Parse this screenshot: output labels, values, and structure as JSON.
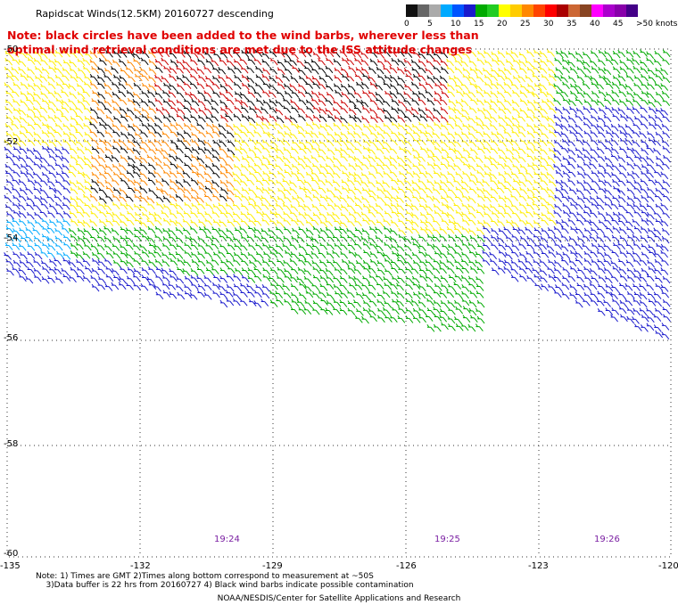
{
  "title": "Rapidscat Winds(12.5KM) 20160727 descending",
  "note": "Note: black circles have been added to the wind barbs, wherever less than optimal wind retrieval conditions are met due to the ISS attitude changes",
  "colorbar": {
    "labels": [
      "0",
      "5",
      "10",
      "15",
      "20",
      "25",
      "30",
      "35",
      "40",
      "45",
      ">50 knots"
    ],
    "colors": [
      "#111111",
      "#666666",
      "#aaaaaa",
      "#00aaff",
      "#0055ff",
      "#1a1acd",
      "#00aa00",
      "#22cc22",
      "#ffff00",
      "#ffcc00",
      "#ff8800",
      "#ff4400",
      "#ff0000",
      "#aa0000",
      "#cc6633",
      "#884422",
      "#ff00ff",
      "#aa00cc",
      "#8800aa",
      "#440088"
    ]
  },
  "axes": {
    "lat_labels": [
      "-50",
      "-52",
      "-54",
      "-56",
      "-58",
      "-60"
    ],
    "lon_labels": [
      "-135",
      "-132",
      "-129",
      "-126",
      "-123",
      "-120"
    ]
  },
  "times": [
    "19:24",
    "19:25",
    "19:26"
  ],
  "footer": {
    "line1": "Note: 1) Times are GMT 2)Times along bottom correspond to measurement at ~50S",
    "line2": "    3)Data buffer is 22 hrs from 20160727 4) Black wind barbs indicate possible contamination"
  },
  "credit": "NOAA/NESDIS/Center for Satellite Applications and Research",
  "wind_field": {
    "speed_bands_knots": [
      {
        "color": "#00aaff",
        "range": "10-15"
      },
      {
        "color": "#1a1acd",
        "range": "15-20"
      },
      {
        "color": "#00aa00",
        "range": "15-20"
      },
      {
        "color": "#ffee00",
        "range": "20-25"
      },
      {
        "color": "#ff8800",
        "range": "25-30"
      },
      {
        "color": "#cc0000",
        "range": "30-35"
      },
      {
        "color": "#000000",
        "range": "contaminated"
      }
    ]
  }
}
